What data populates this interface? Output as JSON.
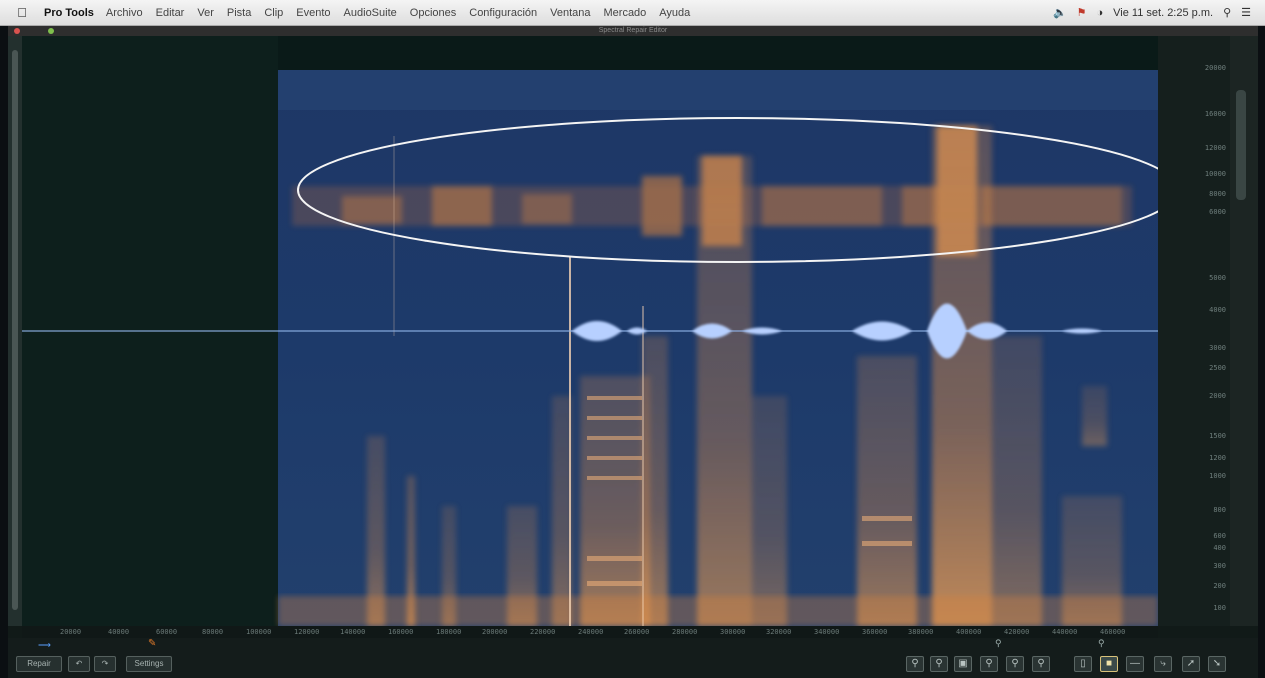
{
  "menubar": {
    "apple": "",
    "app": "Pro Tools",
    "items": [
      "Archivo",
      "Editar",
      "Ver",
      "Pista",
      "Clip",
      "Evento",
      "AudioSuite",
      "Opciones",
      "Configuración",
      "Ventana",
      "Mercado",
      "Ayuda"
    ],
    "datetime": "Vie 11 set. 2:25 p.m."
  },
  "window": {
    "title": "Spectral Repair Editor"
  },
  "timeline": {
    "labels": [
      "20000",
      "40000",
      "60000",
      "80000",
      "100000",
      "120000",
      "140000",
      "160000",
      "180000",
      "200000",
      "220000",
      "240000",
      "260000",
      "280000",
      "300000",
      "320000",
      "340000",
      "360000",
      "380000",
      "400000",
      "420000",
      "440000",
      "460000"
    ]
  },
  "freq_axis": {
    "labels": [
      "20000",
      "16000",
      "12000",
      "10000",
      "8000",
      "6000",
      "5000",
      "4000",
      "3000",
      "2500",
      "2000",
      "1500",
      "1200",
      "1000",
      "800",
      "600",
      "400",
      "300",
      "200",
      "100"
    ]
  },
  "buttons": {
    "repair": "Repair",
    "settings": "Settings"
  },
  "colors": {
    "background": "#0b0f12",
    "spectrogram_blue": "#1d3a68",
    "energy_orange": "#d9894a",
    "waveform": "#a9c8ff",
    "ellipse": "#ffffff",
    "selected_tool": "#d9c27a"
  }
}
